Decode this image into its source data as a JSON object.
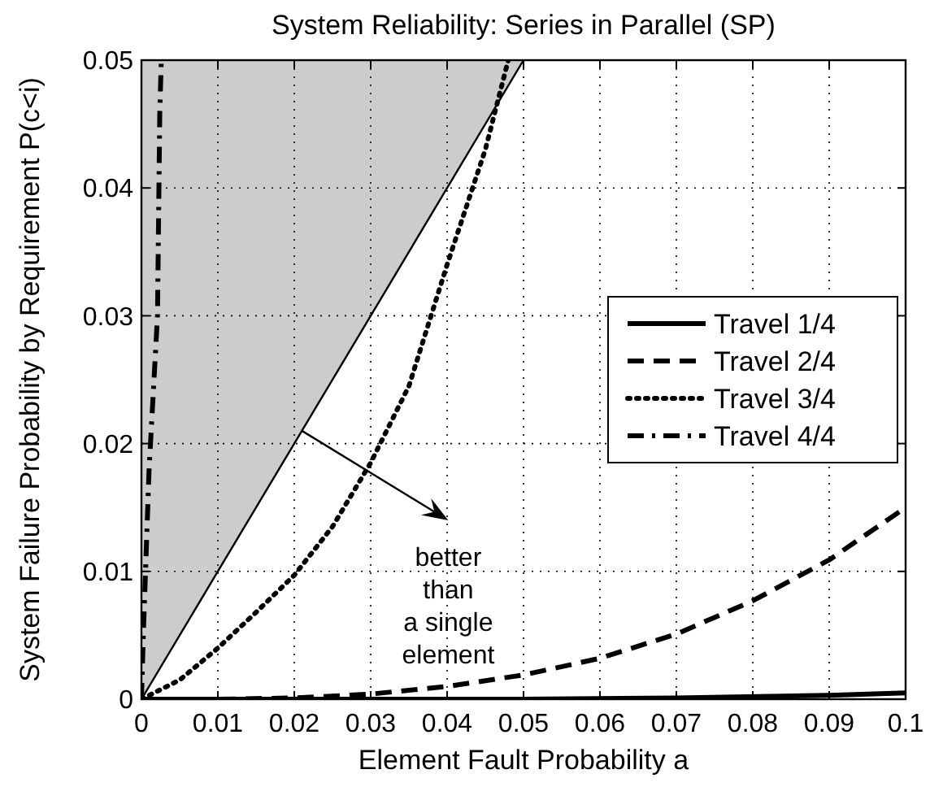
{
  "chart_data": {
    "type": "line",
    "title": "System Reliability: Series in Parallel (SP)",
    "xlabel": "Element Fault Probability a",
    "ylabel": "System Failure Probability by Requirement P(c<i)",
    "xlim": [
      0,
      0.1
    ],
    "ylim": [
      0,
      0.05
    ],
    "xticks": [
      0,
      0.01,
      0.02,
      0.03,
      0.04,
      0.05,
      0.06,
      0.07,
      0.08,
      0.09,
      0.1
    ],
    "yticks": [
      0,
      0.01,
      0.02,
      0.03,
      0.04,
      0.05
    ],
    "grid": true,
    "legend": "right",
    "series": [
      {
        "color": "#000000",
        "line_style": "solid",
        "x": [
          0,
          0.05
        ],
        "values": [
          0,
          0.05
        ],
        "lower": [
          0,
          0.05
        ],
        "upper": [
          0.05,
          0.05
        ]
      },
      {
        "name": "Travel 1/4",
        "color": "#000000",
        "line_style": "solid",
        "x": [
          0,
          0.05,
          0.07,
          0.09,
          0.1
        ],
        "values": [
          0,
          0,
          0.0001,
          0.0003,
          0.0005
        ]
      },
      {
        "name": "Travel 2/4",
        "color": "#000000",
        "line_style": "dashed",
        "x": [
          0,
          0.01,
          0.02,
          0.03,
          0.04,
          0.05,
          0.06,
          0.07,
          0.08,
          0.09,
          0.1
        ],
        "values": [
          0,
          0,
          0.0001,
          0.0004,
          0.001,
          0.0019,
          0.0032,
          0.0051,
          0.0077,
          0.0109,
          0.015
        ]
      },
      {
        "name": "Travel 3/4",
        "color": "#000000",
        "line_style": "dotted",
        "x": [
          0,
          0.005,
          0.01,
          0.015,
          0.02,
          0.025,
          0.03,
          0.035,
          0.04,
          0.045,
          0.048
        ],
        "values": [
          0,
          0.0015,
          0.004,
          0.0068,
          0.0097,
          0.0135,
          0.0185,
          0.0245,
          0.034,
          0.043,
          0.05
        ]
      },
      {
        "name": "Travel 4/4",
        "color": "#000000",
        "line_style": "dashdot",
        "x": [
          0,
          0.0003,
          0.001,
          0.0021,
          0.0024,
          0.0026
        ],
        "values": [
          0,
          0.006,
          0.018,
          0.03,
          0.046,
          0.05
        ]
      }
    ],
    "annotations": [
      {
        "text": "better\nthan\na single\nelement",
        "x": 0.021,
        "y": 0.021
      }
    ]
  }
}
